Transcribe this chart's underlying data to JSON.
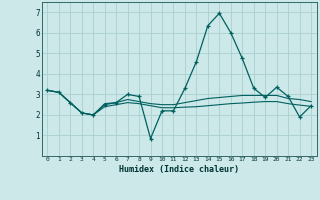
{
  "title": "",
  "xlabel": "Humidex (Indice chaleur)",
  "bg_color": "#cce8e8",
  "grid_color": "#aacfcf",
  "line_color": "#006060",
  "xlim": [
    -0.5,
    23.5
  ],
  "ylim": [
    0,
    7.5
  ],
  "xticks": [
    0,
    1,
    2,
    3,
    4,
    5,
    6,
    7,
    8,
    9,
    10,
    11,
    12,
    13,
    14,
    15,
    16,
    17,
    18,
    19,
    20,
    21,
    22,
    23
  ],
  "yticks": [
    1,
    2,
    3,
    4,
    5,
    6,
    7
  ],
  "series1_x": [
    0,
    1,
    2,
    3,
    4,
    5,
    6,
    7,
    8,
    9,
    10,
    11,
    12,
    13,
    14,
    15,
    16,
    17,
    18,
    19,
    20,
    21,
    22,
    23
  ],
  "series1_y": [
    3.2,
    3.1,
    2.6,
    2.1,
    2.0,
    2.5,
    2.6,
    3.0,
    2.9,
    0.85,
    2.2,
    2.2,
    3.3,
    4.6,
    6.35,
    6.95,
    6.0,
    4.75,
    3.3,
    2.85,
    3.35,
    2.9,
    1.9,
    2.45
  ],
  "series2_x": [
    0,
    1,
    2,
    3,
    4,
    5,
    6,
    7,
    8,
    9,
    10,
    11,
    12,
    13,
    14,
    15,
    16,
    17,
    18,
    19,
    20,
    21,
    22,
    23
  ],
  "series2_y": [
    3.2,
    3.1,
    2.6,
    2.1,
    2.0,
    2.55,
    2.6,
    2.75,
    2.65,
    2.55,
    2.5,
    2.5,
    2.6,
    2.7,
    2.8,
    2.85,
    2.9,
    2.95,
    2.95,
    2.95,
    2.95,
    2.8,
    2.75,
    2.65
  ],
  "series3_x": [
    0,
    1,
    2,
    3,
    4,
    5,
    6,
    7,
    8,
    9,
    10,
    11,
    12,
    13,
    14,
    15,
    16,
    17,
    18,
    19,
    20,
    21,
    22,
    23
  ],
  "series3_y": [
    3.2,
    3.1,
    2.6,
    2.1,
    2.0,
    2.4,
    2.5,
    2.6,
    2.55,
    2.45,
    2.35,
    2.35,
    2.38,
    2.4,
    2.45,
    2.5,
    2.55,
    2.58,
    2.62,
    2.65,
    2.65,
    2.55,
    2.48,
    2.42
  ]
}
